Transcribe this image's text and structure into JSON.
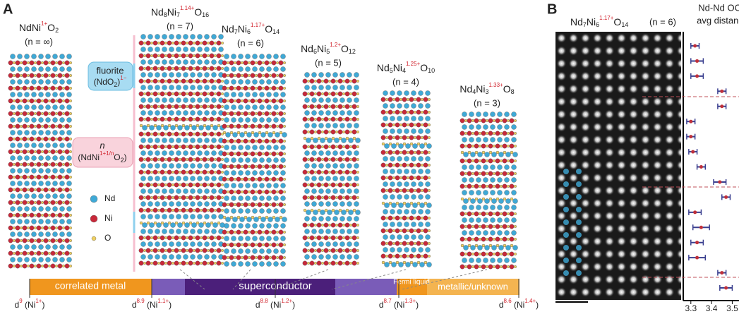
{
  "panel_a": {
    "label": "A",
    "compounds": [
      {
        "tokens": [
          {
            "text": "NdNi"
          },
          {
            "text": "1+",
            "pos": "sup"
          },
          {
            "text": "O"
          },
          {
            "text": "2",
            "pos": "sub"
          }
        ],
        "n_label": "(n = ∞)"
      },
      {
        "tokens": [
          {
            "text": "Nd"
          },
          {
            "text": "8",
            "pos": "sub"
          },
          {
            "text": "Ni"
          },
          {
            "text": "7",
            "pos": "sub"
          },
          {
            "text": "1.14+",
            "pos": "sup"
          },
          {
            "text": "O"
          },
          {
            "text": "16",
            "pos": "sub"
          }
        ],
        "n_label": "(n = 7)"
      },
      {
        "tokens": [
          {
            "text": "Nd"
          },
          {
            "text": "7",
            "pos": "sub"
          },
          {
            "text": "Ni"
          },
          {
            "text": "6",
            "pos": "sub"
          },
          {
            "text": "1.17+",
            "pos": "sup"
          },
          {
            "text": "O"
          },
          {
            "text": "14",
            "pos": "sub"
          }
        ],
        "n_label": "(n = 6)"
      },
      {
        "tokens": [
          {
            "text": "Nd"
          },
          {
            "text": "6",
            "pos": "sub"
          },
          {
            "text": "Ni"
          },
          {
            "text": "5",
            "pos": "sub"
          },
          {
            "text": "1.2+",
            "pos": "sup"
          },
          {
            "text": "O"
          },
          {
            "text": "12",
            "pos": "sub"
          }
        ],
        "n_label": "(n = 5)"
      },
      {
        "tokens": [
          {
            "text": "Nd"
          },
          {
            "text": "5",
            "pos": "sub"
          },
          {
            "text": "Ni"
          },
          {
            "text": "4",
            "pos": "sub"
          },
          {
            "text": "1.25+",
            "pos": "sup"
          },
          {
            "text": "O"
          },
          {
            "text": "10",
            "pos": "sub"
          }
        ],
        "n_label": "(n = 4)"
      },
      {
        "tokens": [
          {
            "text": "Nd"
          },
          {
            "text": "4",
            "pos": "sub"
          },
          {
            "text": "Ni"
          },
          {
            "text": "3",
            "pos": "sub"
          },
          {
            "text": "1.33+",
            "pos": "sup"
          },
          {
            "text": "O"
          },
          {
            "text": "8",
            "pos": "sub"
          }
        ],
        "n_label": "(n = 3)"
      }
    ],
    "legend": {
      "fluorite": {
        "line1": "fluorite",
        "tokens": [
          {
            "text": "(NdO"
          },
          {
            "text": "2",
            "pos": "sub"
          },
          {
            "text": ")"
          },
          {
            "text": "1−",
            "pos": "sup"
          }
        ]
      },
      "layer": {
        "line1": "n",
        "tokens": [
          {
            "text": "(NdNi"
          },
          {
            "text": "1+1/n",
            "pos": "sup"
          },
          {
            "text": "O"
          },
          {
            "text": "2",
            "pos": "sub"
          },
          {
            "text": ")"
          }
        ]
      },
      "atoms": [
        "Nd",
        "Ni",
        "O"
      ]
    },
    "phases": [
      "correlated metal",
      "superconductor",
      "Fermi liquid",
      "metallic/unknown"
    ],
    "axis_labels": [
      [
        {
          "text": "d"
        },
        {
          "text": "9",
          "pos": "sup"
        },
        {
          "text": " (Ni"
        },
        {
          "text": "1+",
          "pos": "sup"
        },
        {
          "text": ")"
        }
      ],
      [
        {
          "text": "d"
        },
        {
          "text": "8.9",
          "pos": "sup"
        },
        {
          "text": " (Ni"
        },
        {
          "text": "1.1+",
          "pos": "sup"
        },
        {
          "text": ")"
        }
      ],
      [
        {
          "text": "d"
        },
        {
          "text": "8.8",
          "pos": "sup"
        },
        {
          "text": " (Ni"
        },
        {
          "text": "1.2+",
          "pos": "sup"
        },
        {
          "text": ")"
        }
      ],
      [
        {
          "text": "d"
        },
        {
          "text": "8.7",
          "pos": "sup"
        },
        {
          "text": " (Ni"
        },
        {
          "text": "1.3+",
          "pos": "sup"
        },
        {
          "text": ")"
        }
      ],
      [
        {
          "text": "d"
        },
        {
          "text": "8.6",
          "pos": "sup"
        },
        {
          "text": " (Ni"
        },
        {
          "text": "1.4+",
          "pos": "sup"
        },
        {
          "text": ")"
        }
      ]
    ]
  },
  "panel_b": {
    "label": "B",
    "tokens": [
      {
        "text": "Nd"
      },
      {
        "text": "7",
        "pos": "sub"
      },
      {
        "text": "Ni"
      },
      {
        "text": "6",
        "pos": "sub"
      },
      {
        "text": "1.17+",
        "pos": "sup"
      },
      {
        "text": "O"
      },
      {
        "text": "14",
        "pos": "sub"
      }
    ],
    "n_label": "(n = 6)",
    "plot_title": [
      "Nd-Nd OO",
      "avg distanc"
    ]
  },
  "chart_data": {
    "type": "errorbar",
    "values": [
      3.32,
      3.33,
      3.33,
      3.45,
      3.45,
      3.3,
      3.3,
      3.31,
      3.35,
      3.44,
      3.47,
      3.32,
      3.35,
      3.33,
      3.33,
      3.45,
      3.47
    ],
    "errors": [
      0.02,
      0.03,
      0.03,
      0.02,
      0.02,
      0.02,
      0.02,
      0.02,
      0.02,
      0.03,
      0.02,
      0.03,
      0.04,
      0.03,
      0.04,
      0.02,
      0.03
    ],
    "color": "#3a3f8f",
    "point_color": "#c0303a",
    "xlim": [
      3.27,
      3.56
    ],
    "xticks": [
      3.3,
      3.4,
      3.5
    ]
  }
}
